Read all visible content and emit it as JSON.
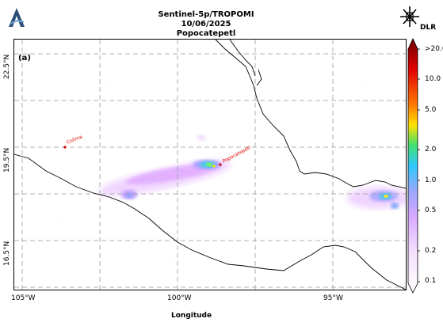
{
  "header": {
    "title_line1": "Sentinel-5p/TROPOMI",
    "title_line2": "10/06/2025",
    "title_line3": "Popocatepetl",
    "dlr_label": "DLR"
  },
  "map": {
    "panel_label": "(a)",
    "lat_labels": [
      "22.5°N",
      "19.5°N",
      "16.5°N"
    ],
    "lon_labels": [
      "105°W",
      "100°W",
      "95°W"
    ],
    "xlabel": "Longitude",
    "sites": [
      {
        "name": "Colima"
      },
      {
        "name": "Popocatepetl"
      }
    ]
  },
  "colorbar": {
    "ticks": [
      ">20.0",
      "10.0",
      "5.0",
      "2.0",
      "1.0",
      "0.5",
      "0.2",
      "0.1"
    ],
    "colors": [
      "#6b0000",
      "#e00000",
      "#ff7a00",
      "#ffe000",
      "#40e070",
      "#30c8ff",
      "#9aa8ff",
      "#d8a8ff",
      "#f4e0ff",
      "#ffffff"
    ]
  }
}
